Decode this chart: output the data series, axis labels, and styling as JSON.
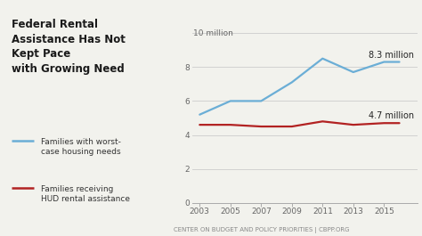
{
  "title_left": "Federal Rental\nAssistance Has Not\nKept Pace\nwith Growing Need",
  "blue_label": "Families with worst-\ncase housing needs",
  "red_label": "Families receiving\nHUD rental assistance",
  "footnote": "CENTER ON BUDGET AND POLICY PRIORITIES | CBPP.ORG",
  "years_blue": [
    2003,
    2005,
    2007,
    2009,
    2011,
    2013,
    2015,
    2016
  ],
  "values_blue": [
    5.2,
    6.0,
    6.0,
    7.1,
    8.5,
    7.7,
    8.3,
    8.3
  ],
  "years_red": [
    2003,
    2005,
    2007,
    2009,
    2011,
    2013,
    2015,
    2016
  ],
  "values_red": [
    4.6,
    4.6,
    4.5,
    4.5,
    4.8,
    4.6,
    4.7,
    4.7
  ],
  "blue_color": "#6baed6",
  "red_color": "#b22222",
  "annotation_blue": "8.3 million",
  "annotation_red": "4.7 million",
  "ylim": [
    0,
    10
  ],
  "yticks": [
    0,
    2,
    4,
    6,
    8
  ],
  "ytick_labels": [
    "0",
    "2",
    "4",
    "6",
    "8"
  ],
  "y_top_label": "10 million",
  "xlim": [
    2002.5,
    2017.2
  ],
  "xticks": [
    2003,
    2005,
    2007,
    2009,
    2011,
    2013,
    2015
  ],
  "background_color": "#f2f2ed",
  "plot_bg": "#f2f2ed",
  "grid_color": "#cccccc",
  "title_fontsize": 8.5,
  "axis_fontsize": 6.5,
  "legend_fontsize": 6.5,
  "annotation_fontsize": 7.0
}
